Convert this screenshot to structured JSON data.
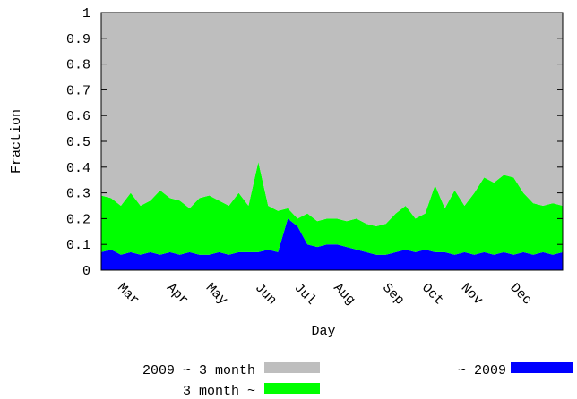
{
  "chart_data": {
    "type": "stacked-area",
    "x_label": "Day",
    "y_label": "Fraction",
    "categories": [
      null,
      null,
      "Mar",
      null,
      null,
      null,
      null,
      "Apr",
      null,
      null,
      null,
      "May",
      null,
      null,
      null,
      null,
      "Jun",
      null,
      null,
      null,
      "Jul",
      null,
      null,
      null,
      "Aug",
      null,
      null,
      null,
      null,
      "Sep",
      null,
      null,
      null,
      "Oct",
      null,
      null,
      null,
      "Nov",
      null,
      null,
      null,
      null,
      "Dec",
      null,
      null,
      null,
      null,
      null
    ],
    "series": [
      {
        "name": "~ 2009",
        "color": "#0000ff",
        "values": [
          0.07,
          0.08,
          0.06,
          0.07,
          0.06,
          0.07,
          0.06,
          0.07,
          0.06,
          0.07,
          0.06,
          0.06,
          0.07,
          0.06,
          0.07,
          0.07,
          0.07,
          0.08,
          0.07,
          0.2,
          0.17,
          0.1,
          0.09,
          0.1,
          0.1,
          0.09,
          0.08,
          0.07,
          0.06,
          0.06,
          0.07,
          0.08,
          0.07,
          0.08,
          0.07,
          0.07,
          0.06,
          0.07,
          0.06,
          0.07,
          0.06,
          0.07,
          0.06,
          0.07,
          0.06,
          0.07,
          0.06,
          0.07
        ]
      },
      {
        "name": "3 month ~",
        "color": "#00ff00",
        "values": [
          0.22,
          0.2,
          0.19,
          0.23,
          0.19,
          0.2,
          0.25,
          0.21,
          0.21,
          0.17,
          0.22,
          0.23,
          0.2,
          0.19,
          0.23,
          0.18,
          0.35,
          0.17,
          0.16,
          0.04,
          0.03,
          0.12,
          0.1,
          0.1,
          0.1,
          0.1,
          0.12,
          0.11,
          0.11,
          0.12,
          0.15,
          0.17,
          0.13,
          0.14,
          0.26,
          0.17,
          0.25,
          0.18,
          0.24,
          0.29,
          0.28,
          0.3,
          0.3,
          0.23,
          0.2,
          0.18,
          0.2,
          0.18
        ]
      },
      {
        "name": "2009 ~ 3 month",
        "color": "#bebebe",
        "values": [
          0.71,
          0.72,
          0.75,
          0.7,
          0.75,
          0.73,
          0.69,
          0.72,
          0.73,
          0.76,
          0.72,
          0.71,
          0.73,
          0.75,
          0.7,
          0.75,
          0.58,
          0.75,
          0.77,
          0.76,
          0.8,
          0.78,
          0.81,
          0.8,
          0.8,
          0.81,
          0.8,
          0.82,
          0.83,
          0.82,
          0.78,
          0.75,
          0.8,
          0.78,
          0.67,
          0.76,
          0.69,
          0.75,
          0.7,
          0.64,
          0.66,
          0.63,
          0.64,
          0.7,
          0.74,
          0.75,
          0.74,
          0.75
        ]
      }
    ],
    "ylim": [
      0,
      1
    ],
    "yticks": [
      0,
      0.1,
      0.2,
      0.3,
      0.4,
      0.5,
      0.6,
      0.7,
      0.8,
      0.9,
      1
    ]
  }
}
